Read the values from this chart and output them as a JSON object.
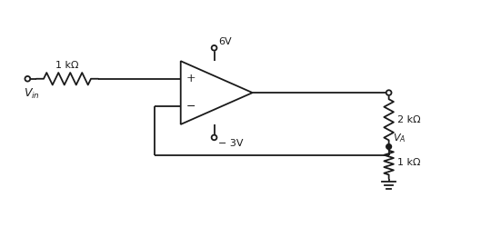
{
  "bg_color": "#ffffff",
  "line_color": "#1a1a1a",
  "line_width": 1.3,
  "fig_width": 5.29,
  "fig_height": 2.61,
  "dpi": 100,
  "labels": {
    "r1": "1 kΩ",
    "r2": "2 kΩ",
    "r3": "1 kΩ",
    "v_pos": "6V",
    "v_neg": "− 3V",
    "vin_main": "V",
    "vin_sub": "in",
    "va_main": "V",
    "va_sub": "A"
  },
  "fontsize_label": 8,
  "fontsize_pm": 9
}
